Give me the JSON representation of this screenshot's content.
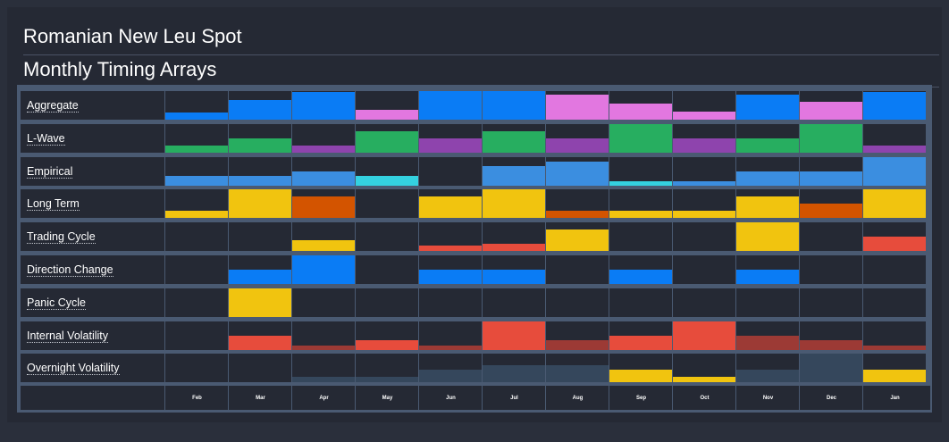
{
  "header": {
    "title": "Romanian New Leu Spot",
    "subtitle": "Monthly Timing Arrays"
  },
  "colors": {
    "blue": "#0a7cf5",
    "green": "#27ae60",
    "purple": "#8e44ad",
    "pink": "#e277e0",
    "light_blue": "#3b8ee0",
    "cyan": "#34d1e0",
    "yellow": "#f1c40f",
    "orange": "#d35400",
    "red": "#e74c3c",
    "dark_red": "#9c3a35",
    "slate": "#35475c"
  },
  "chart_data": {
    "type": "heatmap",
    "title": "Monthly Timing Arrays",
    "months": [
      "Feb",
      "Mar",
      "Apr",
      "May",
      "Jun",
      "Jul",
      "Aug",
      "Sep",
      "Oct",
      "Nov",
      "Dec",
      "Jan"
    ],
    "scale_max": 1,
    "rows": [
      {
        "label": "Aggregate",
        "values": [
          0.25,
          0.69,
          0.97,
          0.34,
          1.0,
          1.0,
          0.88,
          0.56,
          0.28,
          0.88,
          0.62,
          0.97
        ],
        "colors": [
          "blue",
          "blue",
          "blue",
          "pink",
          "blue",
          "blue",
          "pink",
          "pink",
          "pink",
          "blue",
          "pink",
          "blue"
        ]
      },
      {
        "label": "L-Wave",
        "values": [
          0.25,
          0.5,
          0.25,
          0.75,
          0.5,
          0.75,
          0.5,
          1.0,
          0.5,
          0.5,
          1.0,
          0.25
        ],
        "colors": [
          "green",
          "green",
          "purple",
          "green",
          "purple",
          "green",
          "purple",
          "green",
          "purple",
          "green",
          "green",
          "purple"
        ]
      },
      {
        "label": "Empirical",
        "values": [
          0.34,
          0.34,
          0.5,
          0.34,
          0.0,
          0.69,
          0.84,
          0.16,
          0.16,
          0.5,
          0.5,
          1.0
        ],
        "colors": [
          "light_blue",
          "light_blue",
          "light_blue",
          "cyan",
          "light_blue",
          "light_blue",
          "light_blue",
          "cyan",
          "light_blue",
          "light_blue",
          "light_blue",
          "light_blue"
        ]
      },
      {
        "label": "Long Term",
        "values": [
          0.25,
          1.0,
          0.75,
          0.0,
          0.75,
          1.0,
          0.25,
          0.25,
          0.25,
          0.75,
          0.5,
          1.0
        ],
        "colors": [
          "yellow",
          "yellow",
          "orange",
          "yellow",
          "yellow",
          "yellow",
          "orange",
          "yellow",
          "yellow",
          "yellow",
          "orange",
          "yellow"
        ]
      },
      {
        "label": "Trading Cycle",
        "values": [
          0.0,
          0.0,
          0.38,
          0.0,
          0.19,
          0.25,
          0.75,
          0.0,
          0.0,
          1.0,
          0.0,
          0.5
        ],
        "colors": [
          "yellow",
          "yellow",
          "yellow",
          "yellow",
          "red",
          "red",
          "yellow",
          "yellow",
          "yellow",
          "yellow",
          "yellow",
          "red"
        ]
      },
      {
        "label": "Direction Change",
        "values": [
          0.0,
          0.5,
          1.0,
          0.0,
          0.5,
          0.5,
          0.0,
          0.5,
          0.0,
          0.5,
          0.0,
          0.0
        ],
        "colors": [
          "blue",
          "blue",
          "blue",
          "blue",
          "blue",
          "blue",
          "blue",
          "blue",
          "blue",
          "blue",
          "blue",
          "blue"
        ]
      },
      {
        "label": "Panic Cycle",
        "values": [
          0.0,
          1.0,
          0.0,
          0.0,
          0.0,
          0.0,
          0.0,
          0.0,
          0.0,
          0.0,
          0.0,
          0.0
        ],
        "colors": [
          "yellow",
          "yellow",
          "yellow",
          "yellow",
          "yellow",
          "yellow",
          "yellow",
          "yellow",
          "yellow",
          "yellow",
          "yellow",
          "yellow"
        ]
      },
      {
        "label": "Internal Volatility",
        "values": [
          0.0,
          0.5,
          0.16,
          0.34,
          0.16,
          1.0,
          0.34,
          0.5,
          1.0,
          0.5,
          0.34,
          0.16
        ],
        "colors": [
          "red",
          "red",
          "dark_red",
          "red",
          "dark_red",
          "red",
          "dark_red",
          "red",
          "red",
          "dark_red",
          "dark_red",
          "dark_red"
        ]
      },
      {
        "label": "Overnight Volatility",
        "values": [
          0.0,
          0.0,
          0.19,
          0.19,
          0.44,
          0.59,
          0.59,
          0.44,
          0.19,
          0.44,
          1.0,
          0.44
        ],
        "colors": [
          "slate",
          "slate",
          "slate",
          "slate",
          "slate",
          "slate",
          "slate",
          "yellow",
          "yellow",
          "slate",
          "slate",
          "yellow"
        ]
      }
    ]
  }
}
